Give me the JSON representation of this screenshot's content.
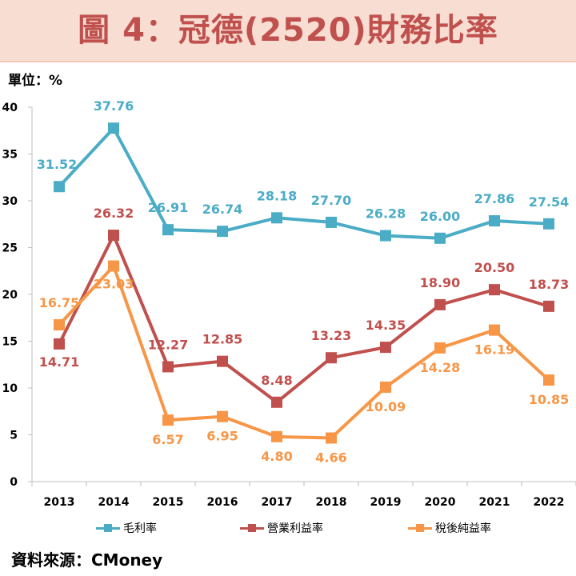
{
  "header": {
    "title": "圖 4：冠德(2520)財務比率"
  },
  "unit_label": "單位：%",
  "source_label": "資料來源：CMoney",
  "colors": {
    "gross": "#4bacc6",
    "operating": "#c0504d",
    "net": "#f79646",
    "title": "#c0504d",
    "banner": "#f7ddd2"
  },
  "chart_data": {
    "type": "line",
    "categories": [
      "2013",
      "2014",
      "2015",
      "2016",
      "2017",
      "2018",
      "2019",
      "2020",
      "2021",
      "2022"
    ],
    "ylim": [
      0,
      40
    ],
    "yticks": [
      "0",
      "5",
      "10",
      "15",
      "20",
      "25",
      "30",
      "35",
      "40"
    ],
    "series": [
      {
        "name": "毛利率",
        "key": "gross",
        "values": [
          31.52,
          37.76,
          26.91,
          26.74,
          28.18,
          27.7,
          26.28,
          26.0,
          27.86,
          27.54
        ],
        "labels": [
          "31.52",
          "37.76",
          "26.91",
          "26.74",
          "28.18",
          "27.70",
          "26.28",
          "26.00",
          "27.86",
          "27.54"
        ]
      },
      {
        "name": "營業利益率",
        "key": "operating",
        "values": [
          14.71,
          26.32,
          12.27,
          12.85,
          8.48,
          13.23,
          14.35,
          18.9,
          20.5,
          18.73
        ],
        "labels": [
          "14.71",
          "26.32",
          "12.27",
          "12.85",
          "8.48",
          "13.23",
          "14.35",
          "18.90",
          "20.50",
          "18.73"
        ]
      },
      {
        "name": "稅後純益率",
        "key": "net",
        "values": [
          16.75,
          23.03,
          6.57,
          6.95,
          4.8,
          4.66,
          10.09,
          14.28,
          16.19,
          10.85
        ],
        "labels": [
          "16.75",
          "23.03",
          "6.57",
          "6.95",
          "4.80",
          "4.66",
          "10.09",
          "14.28",
          "16.19",
          "10.85"
        ]
      }
    ]
  }
}
